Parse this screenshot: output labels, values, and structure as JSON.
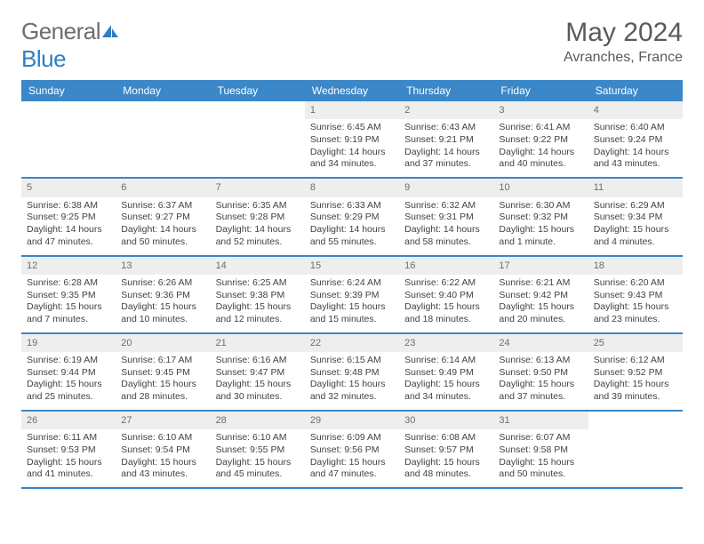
{
  "brand": {
    "word1": "General",
    "word2": "Blue",
    "word1_color": "#6d6d6d",
    "word2_color": "#2d7fc2",
    "icon_color": "#2d7fc2"
  },
  "header": {
    "month_title": "May 2024",
    "location": "Avranches, France"
  },
  "colors": {
    "header_row_bg": "#3b87c8",
    "header_row_text": "#ffffff",
    "day_num_bg": "#eeeeee",
    "day_num_text": "#6d6d6d",
    "week_divider": "#3b87c8",
    "body_text": "#424242"
  },
  "day_labels": [
    "Sunday",
    "Monday",
    "Tuesday",
    "Wednesday",
    "Thursday",
    "Friday",
    "Saturday"
  ],
  "weeks": [
    [
      null,
      null,
      null,
      {
        "n": "1",
        "sunrise": "Sunrise: 6:45 AM",
        "sunset": "Sunset: 9:19 PM",
        "daylight1": "Daylight: 14 hours",
        "daylight2": "and 34 minutes."
      },
      {
        "n": "2",
        "sunrise": "Sunrise: 6:43 AM",
        "sunset": "Sunset: 9:21 PM",
        "daylight1": "Daylight: 14 hours",
        "daylight2": "and 37 minutes."
      },
      {
        "n": "3",
        "sunrise": "Sunrise: 6:41 AM",
        "sunset": "Sunset: 9:22 PM",
        "daylight1": "Daylight: 14 hours",
        "daylight2": "and 40 minutes."
      },
      {
        "n": "4",
        "sunrise": "Sunrise: 6:40 AM",
        "sunset": "Sunset: 9:24 PM",
        "daylight1": "Daylight: 14 hours",
        "daylight2": "and 43 minutes."
      }
    ],
    [
      {
        "n": "5",
        "sunrise": "Sunrise: 6:38 AM",
        "sunset": "Sunset: 9:25 PM",
        "daylight1": "Daylight: 14 hours",
        "daylight2": "and 47 minutes."
      },
      {
        "n": "6",
        "sunrise": "Sunrise: 6:37 AM",
        "sunset": "Sunset: 9:27 PM",
        "daylight1": "Daylight: 14 hours",
        "daylight2": "and 50 minutes."
      },
      {
        "n": "7",
        "sunrise": "Sunrise: 6:35 AM",
        "sunset": "Sunset: 9:28 PM",
        "daylight1": "Daylight: 14 hours",
        "daylight2": "and 52 minutes."
      },
      {
        "n": "8",
        "sunrise": "Sunrise: 6:33 AM",
        "sunset": "Sunset: 9:29 PM",
        "daylight1": "Daylight: 14 hours",
        "daylight2": "and 55 minutes."
      },
      {
        "n": "9",
        "sunrise": "Sunrise: 6:32 AM",
        "sunset": "Sunset: 9:31 PM",
        "daylight1": "Daylight: 14 hours",
        "daylight2": "and 58 minutes."
      },
      {
        "n": "10",
        "sunrise": "Sunrise: 6:30 AM",
        "sunset": "Sunset: 9:32 PM",
        "daylight1": "Daylight: 15 hours",
        "daylight2": "and 1 minute."
      },
      {
        "n": "11",
        "sunrise": "Sunrise: 6:29 AM",
        "sunset": "Sunset: 9:34 PM",
        "daylight1": "Daylight: 15 hours",
        "daylight2": "and 4 minutes."
      }
    ],
    [
      {
        "n": "12",
        "sunrise": "Sunrise: 6:28 AM",
        "sunset": "Sunset: 9:35 PM",
        "daylight1": "Daylight: 15 hours",
        "daylight2": "and 7 minutes."
      },
      {
        "n": "13",
        "sunrise": "Sunrise: 6:26 AM",
        "sunset": "Sunset: 9:36 PM",
        "daylight1": "Daylight: 15 hours",
        "daylight2": "and 10 minutes."
      },
      {
        "n": "14",
        "sunrise": "Sunrise: 6:25 AM",
        "sunset": "Sunset: 9:38 PM",
        "daylight1": "Daylight: 15 hours",
        "daylight2": "and 12 minutes."
      },
      {
        "n": "15",
        "sunrise": "Sunrise: 6:24 AM",
        "sunset": "Sunset: 9:39 PM",
        "daylight1": "Daylight: 15 hours",
        "daylight2": "and 15 minutes."
      },
      {
        "n": "16",
        "sunrise": "Sunrise: 6:22 AM",
        "sunset": "Sunset: 9:40 PM",
        "daylight1": "Daylight: 15 hours",
        "daylight2": "and 18 minutes."
      },
      {
        "n": "17",
        "sunrise": "Sunrise: 6:21 AM",
        "sunset": "Sunset: 9:42 PM",
        "daylight1": "Daylight: 15 hours",
        "daylight2": "and 20 minutes."
      },
      {
        "n": "18",
        "sunrise": "Sunrise: 6:20 AM",
        "sunset": "Sunset: 9:43 PM",
        "daylight1": "Daylight: 15 hours",
        "daylight2": "and 23 minutes."
      }
    ],
    [
      {
        "n": "19",
        "sunrise": "Sunrise: 6:19 AM",
        "sunset": "Sunset: 9:44 PM",
        "daylight1": "Daylight: 15 hours",
        "daylight2": "and 25 minutes."
      },
      {
        "n": "20",
        "sunrise": "Sunrise: 6:17 AM",
        "sunset": "Sunset: 9:45 PM",
        "daylight1": "Daylight: 15 hours",
        "daylight2": "and 28 minutes."
      },
      {
        "n": "21",
        "sunrise": "Sunrise: 6:16 AM",
        "sunset": "Sunset: 9:47 PM",
        "daylight1": "Daylight: 15 hours",
        "daylight2": "and 30 minutes."
      },
      {
        "n": "22",
        "sunrise": "Sunrise: 6:15 AM",
        "sunset": "Sunset: 9:48 PM",
        "daylight1": "Daylight: 15 hours",
        "daylight2": "and 32 minutes."
      },
      {
        "n": "23",
        "sunrise": "Sunrise: 6:14 AM",
        "sunset": "Sunset: 9:49 PM",
        "daylight1": "Daylight: 15 hours",
        "daylight2": "and 34 minutes."
      },
      {
        "n": "24",
        "sunrise": "Sunrise: 6:13 AM",
        "sunset": "Sunset: 9:50 PM",
        "daylight1": "Daylight: 15 hours",
        "daylight2": "and 37 minutes."
      },
      {
        "n": "25",
        "sunrise": "Sunrise: 6:12 AM",
        "sunset": "Sunset: 9:52 PM",
        "daylight1": "Daylight: 15 hours",
        "daylight2": "and 39 minutes."
      }
    ],
    [
      {
        "n": "26",
        "sunrise": "Sunrise: 6:11 AM",
        "sunset": "Sunset: 9:53 PM",
        "daylight1": "Daylight: 15 hours",
        "daylight2": "and 41 minutes."
      },
      {
        "n": "27",
        "sunrise": "Sunrise: 6:10 AM",
        "sunset": "Sunset: 9:54 PM",
        "daylight1": "Daylight: 15 hours",
        "daylight2": "and 43 minutes."
      },
      {
        "n": "28",
        "sunrise": "Sunrise: 6:10 AM",
        "sunset": "Sunset: 9:55 PM",
        "daylight1": "Daylight: 15 hours",
        "daylight2": "and 45 minutes."
      },
      {
        "n": "29",
        "sunrise": "Sunrise: 6:09 AM",
        "sunset": "Sunset: 9:56 PM",
        "daylight1": "Daylight: 15 hours",
        "daylight2": "and 47 minutes."
      },
      {
        "n": "30",
        "sunrise": "Sunrise: 6:08 AM",
        "sunset": "Sunset: 9:57 PM",
        "daylight1": "Daylight: 15 hours",
        "daylight2": "and 48 minutes."
      },
      {
        "n": "31",
        "sunrise": "Sunrise: 6:07 AM",
        "sunset": "Sunset: 9:58 PM",
        "daylight1": "Daylight: 15 hours",
        "daylight2": "and 50 minutes."
      },
      null
    ]
  ]
}
